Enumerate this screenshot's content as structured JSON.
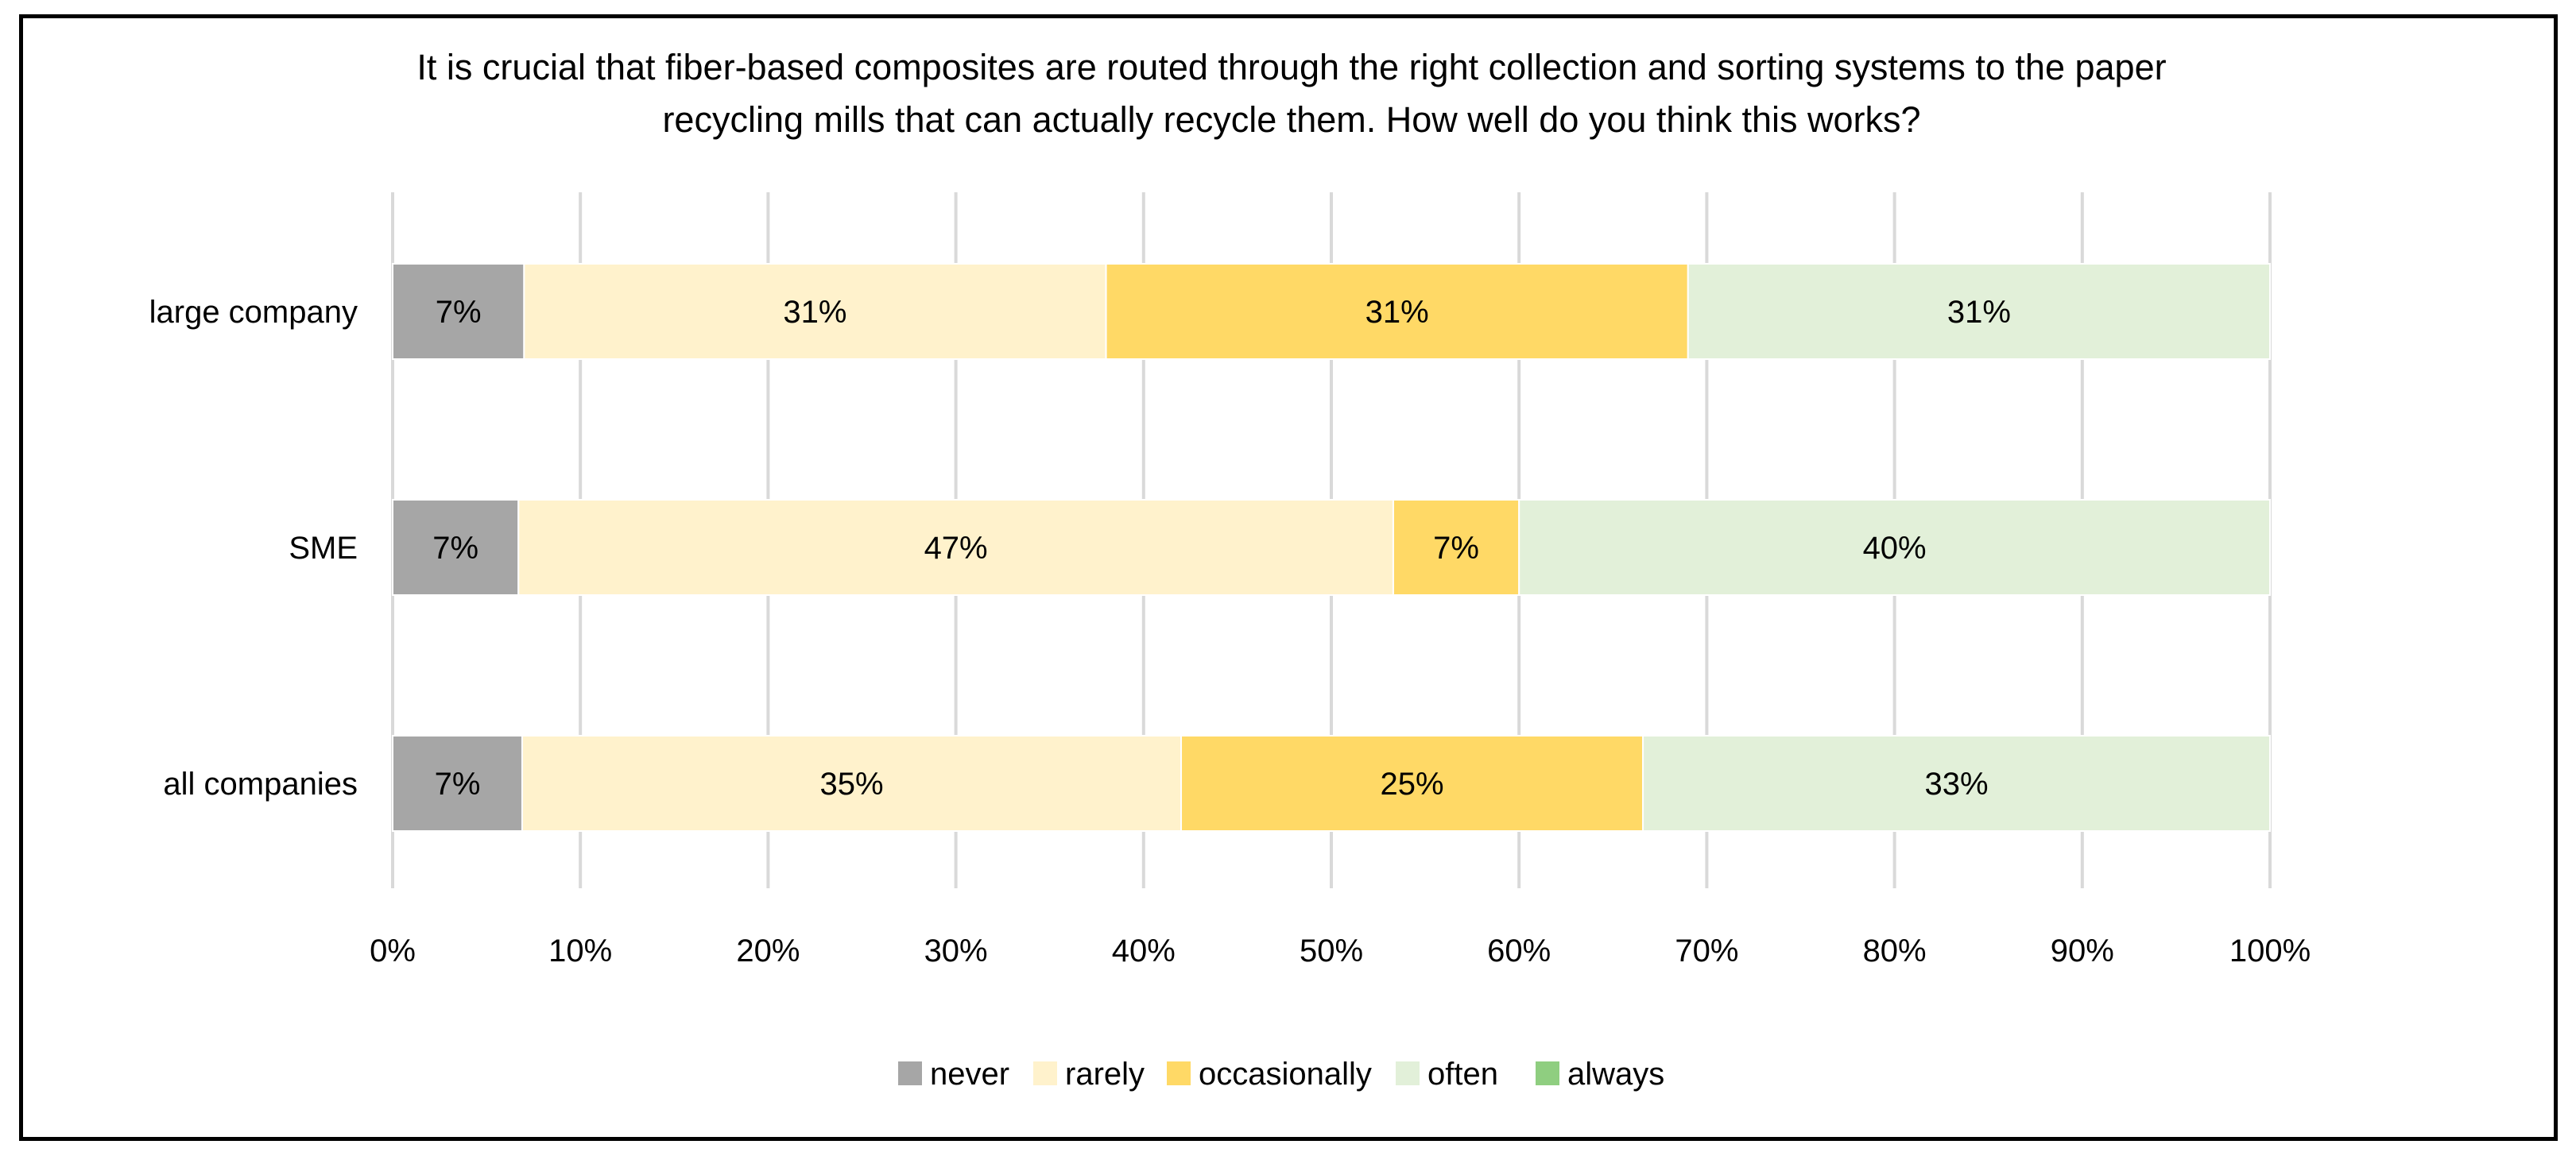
{
  "chart_data": {
    "type": "bar",
    "orientation": "horizontal",
    "stacked": true,
    "title_lines": [
      "It is crucial that fiber-based composites are routed through the right collection and sorting systems to the paper",
      "recycling mills that can actually recycle them. How well do you think this works?"
    ],
    "categories": [
      "large company",
      "SME",
      "all companies"
    ],
    "series": [
      {
        "name": "never",
        "color": "#a6a6a6",
        "values": [
          7,
          6.7,
          6.9
        ],
        "labels": [
          "7%",
          "7%",
          "7%"
        ]
      },
      {
        "name": "rarely",
        "color": "#fff2cc",
        "values": [
          31,
          46.6,
          35.1
        ],
        "labels": [
          "31%",
          "47%",
          "35%"
        ]
      },
      {
        "name": "occasionally",
        "color": "#ffd966",
        "values": [
          31,
          6.7,
          24.6
        ],
        "labels": [
          "31%",
          "7%",
          "25%"
        ]
      },
      {
        "name": "often",
        "color": "#e2f0d9",
        "values": [
          31,
          40,
          33.4
        ],
        "labels": [
          "31%",
          "40%",
          "33%"
        ]
      },
      {
        "name": "always",
        "color": "#8fce80",
        "values": [
          0,
          0,
          0
        ],
        "labels": [
          "",
          "",
          ""
        ]
      }
    ],
    "xlim": [
      0,
      100
    ],
    "xticks": [
      "0%",
      "10%",
      "20%",
      "30%",
      "40%",
      "50%",
      "60%",
      "70%",
      "80%",
      "90%",
      "100%"
    ],
    "grid": true,
    "legend_position": "bottom"
  }
}
